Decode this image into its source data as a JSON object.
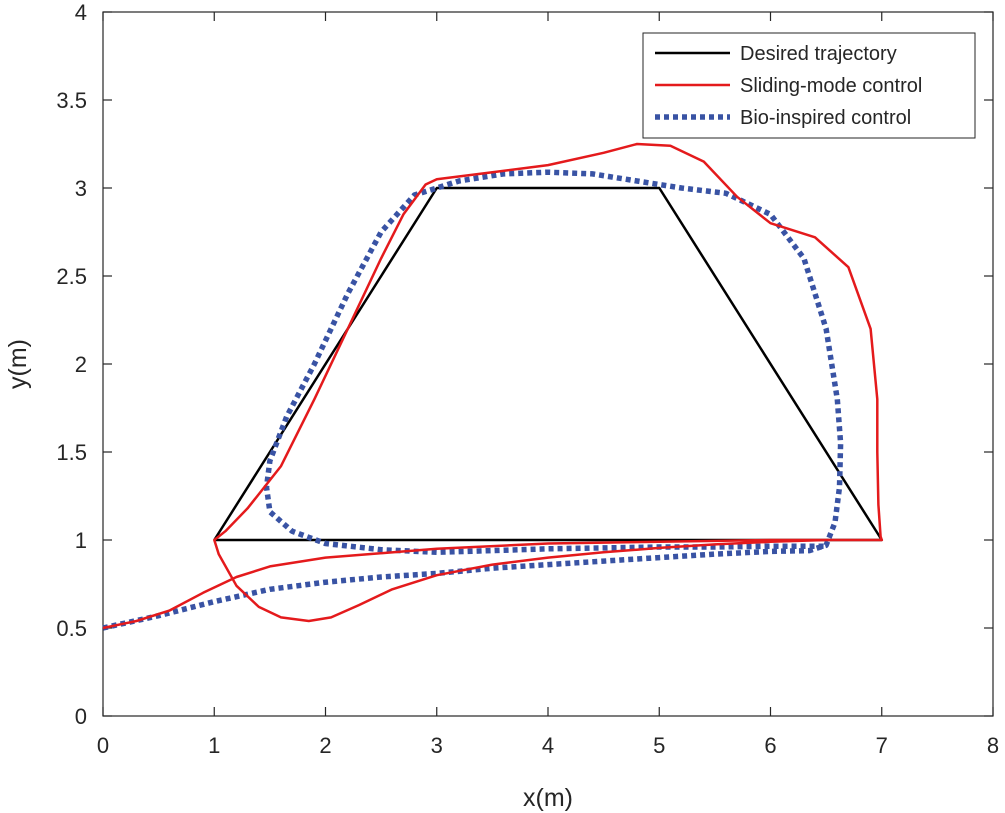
{
  "chart_data": {
    "type": "line",
    "title": "",
    "xlabel": "x(m)",
    "ylabel": "y(m)",
    "xlim": [
      0,
      8
    ],
    "ylim": [
      0,
      4
    ],
    "xticks": [
      0,
      1,
      2,
      3,
      4,
      5,
      6,
      7,
      8
    ],
    "yticks": [
      0,
      0.5,
      1,
      1.5,
      2,
      2.5,
      3,
      3.5,
      4
    ],
    "ytick_labels": [
      "0",
      "0.5",
      "1",
      "1.5",
      "2",
      "2.5",
      "3",
      "3.5",
      "4"
    ],
    "grid": false,
    "legend_position": "top-right",
    "series": [
      {
        "name": "Desired trajectory",
        "color": "#000000",
        "style": "solid",
        "points": [
          [
            1,
            1
          ],
          [
            3,
            3
          ],
          [
            5,
            3
          ],
          [
            7,
            1
          ],
          [
            1,
            1
          ]
        ]
      },
      {
        "name": "Sliding-mode control",
        "color": "#e41a1c",
        "style": "solid",
        "points": [
          [
            0,
            0.5
          ],
          [
            0.3,
            0.54
          ],
          [
            0.6,
            0.6
          ],
          [
            0.9,
            0.7
          ],
          [
            1.2,
            0.79
          ],
          [
            1.5,
            0.85
          ],
          [
            2.0,
            0.9
          ],
          [
            3.0,
            0.95
          ],
          [
            4.0,
            0.98
          ],
          [
            5.0,
            0.99
          ],
          [
            6.0,
            1.0
          ],
          [
            7.0,
            1.0
          ],
          [
            6.99,
            1.02
          ],
          [
            6.97,
            1.2
          ],
          [
            6.96,
            1.5
          ],
          [
            6.96,
            1.8
          ],
          [
            6.9,
            2.2
          ],
          [
            6.7,
            2.55
          ],
          [
            6.4,
            2.72
          ],
          [
            6.0,
            2.8
          ],
          [
            5.7,
            2.95
          ],
          [
            5.4,
            3.15
          ],
          [
            5.1,
            3.24
          ],
          [
            4.8,
            3.25
          ],
          [
            4.5,
            3.2
          ],
          [
            4.0,
            3.13
          ],
          [
            3.5,
            3.09
          ],
          [
            3.0,
            3.05
          ],
          [
            2.9,
            3.02
          ],
          [
            2.7,
            2.85
          ],
          [
            2.5,
            2.6
          ],
          [
            2.2,
            2.2
          ],
          [
            1.9,
            1.8
          ],
          [
            1.6,
            1.42
          ],
          [
            1.3,
            1.18
          ],
          [
            1.1,
            1.05
          ],
          [
            1.0,
            1.0
          ],
          [
            1.04,
            0.92
          ],
          [
            1.2,
            0.74
          ],
          [
            1.4,
            0.62
          ],
          [
            1.6,
            0.56
          ],
          [
            1.85,
            0.54
          ],
          [
            2.05,
            0.56
          ],
          [
            2.3,
            0.63
          ],
          [
            2.6,
            0.72
          ],
          [
            3.0,
            0.8
          ],
          [
            3.5,
            0.86
          ],
          [
            4.0,
            0.9
          ],
          [
            4.5,
            0.93
          ],
          [
            5.0,
            0.955
          ],
          [
            5.5,
            0.975
          ],
          [
            6.0,
            0.99
          ],
          [
            6.5,
            1.0
          ],
          [
            7.0,
            1.0
          ]
        ]
      },
      {
        "name": "Bio-inspired control",
        "color": "#3953a4",
        "style": "dotted",
        "points": [
          [
            0,
            0.5
          ],
          [
            0.5,
            0.57
          ],
          [
            1.0,
            0.65
          ],
          [
            1.5,
            0.72
          ],
          [
            2.0,
            0.76
          ],
          [
            2.5,
            0.79
          ],
          [
            3.0,
            0.81
          ],
          [
            3.5,
            0.84
          ],
          [
            4.0,
            0.86
          ],
          [
            4.5,
            0.88
          ],
          [
            5.0,
            0.9
          ],
          [
            5.5,
            0.92
          ],
          [
            6.0,
            0.935
          ],
          [
            6.35,
            0.94
          ],
          [
            6.5,
            0.97
          ],
          [
            6.58,
            1.1
          ],
          [
            6.62,
            1.3
          ],
          [
            6.63,
            1.55
          ],
          [
            6.6,
            1.8
          ],
          [
            6.5,
            2.2
          ],
          [
            6.3,
            2.6
          ],
          [
            6.0,
            2.85
          ],
          [
            5.6,
            2.97
          ],
          [
            5.2,
            3.0
          ],
          [
            4.8,
            3.04
          ],
          [
            4.4,
            3.08
          ],
          [
            4.0,
            3.09
          ],
          [
            3.6,
            3.08
          ],
          [
            3.2,
            3.04
          ],
          [
            2.8,
            2.96
          ],
          [
            2.5,
            2.75
          ],
          [
            2.2,
            2.4
          ],
          [
            1.9,
            2.0
          ],
          [
            1.65,
            1.7
          ],
          [
            1.5,
            1.45
          ],
          [
            1.47,
            1.3
          ],
          [
            1.5,
            1.16
          ],
          [
            1.7,
            1.05
          ],
          [
            2.0,
            0.98
          ],
          [
            2.5,
            0.945
          ],
          [
            3.0,
            0.93
          ],
          [
            3.5,
            0.94
          ],
          [
            4.0,
            0.95
          ],
          [
            4.5,
            0.955
          ],
          [
            5.0,
            0.96
          ],
          [
            5.5,
            0.96
          ],
          [
            6.0,
            0.965
          ],
          [
            6.5,
            0.965
          ]
        ]
      }
    ]
  }
}
